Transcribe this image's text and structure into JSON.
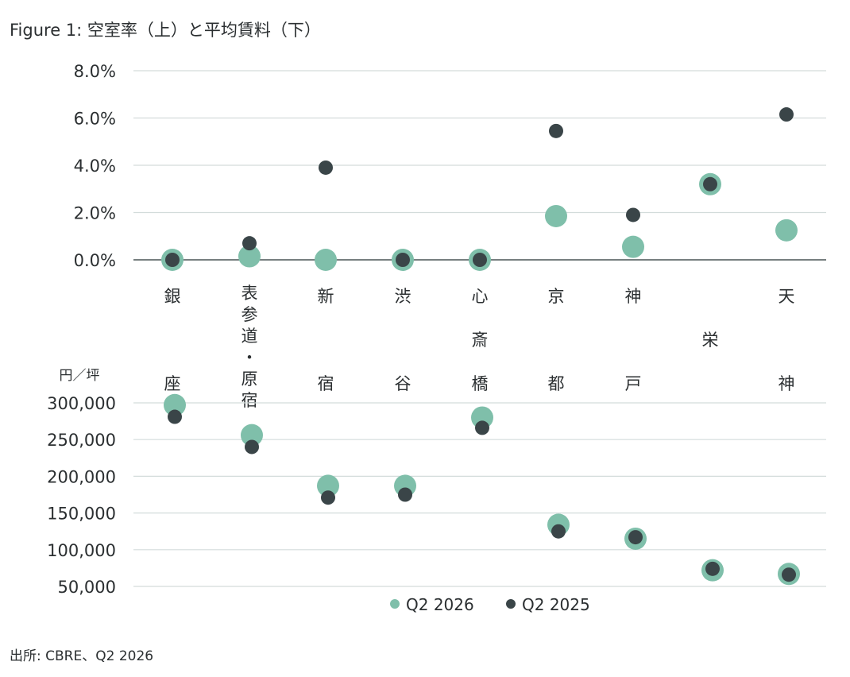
{
  "figure": {
    "title": "Figure 1: 空室率（上）と平均賃料（下）",
    "source": "出所: CBRE、Q2 2026"
  },
  "colors": {
    "q2_2026": "#7fbfaa",
    "q2_2025": "#3a4548",
    "grid": "#d3dcdb",
    "baseline": "#4a5557"
  },
  "chart_data": [
    {
      "type": "scatter",
      "title": "",
      "ylabel": "",
      "ylim": [
        0,
        8
      ],
      "y_ticks": [
        "0.0%",
        "2.0%",
        "4.0%",
        "6.0%",
        "8.0%"
      ],
      "y_tick_values": [
        0,
        2,
        4,
        6,
        8
      ],
      "grid": true,
      "categories": [
        "銀座",
        "表参道・原宿",
        "新宿",
        "渋谷",
        "心斎橋",
        "京都",
        "神戸",
        "栄",
        "天神"
      ],
      "category_label_lines": [
        [
          "銀",
          "",
          "座"
        ],
        [
          "表参道・原宿"
        ],
        [
          "新",
          "",
          "宿"
        ],
        [
          "渋",
          "",
          "谷"
        ],
        [
          "心",
          "斎",
          "橋"
        ],
        [
          "京",
          "",
          "都"
        ],
        [
          "神",
          "",
          "戸"
        ],
        [
          "",
          "栄",
          ""
        ],
        [
          "天",
          "",
          "神"
        ]
      ],
      "series": [
        {
          "name": "Q2 2026",
          "values": [
            0.0,
            0.15,
            0.0,
            0.0,
            0.0,
            1.85,
            0.55,
            3.2,
            1.25
          ]
        },
        {
          "name": "Q2 2025",
          "values": [
            0.0,
            0.7,
            3.9,
            0.0,
            0.0,
            5.45,
            1.9,
            3.2,
            6.15
          ]
        }
      ]
    },
    {
      "type": "scatter",
      "title": "",
      "unit_label": "円／坪",
      "ylim": [
        50000,
        300000
      ],
      "y_ticks": [
        "50,000",
        "100,000",
        "150,000",
        "200,000",
        "250,000",
        "300,000"
      ],
      "y_tick_values": [
        50000,
        100000,
        150000,
        200000,
        250000,
        300000
      ],
      "grid": true,
      "categories": [
        "銀座",
        "表参道・原宿",
        "新宿",
        "渋谷",
        "心斎橋",
        "京都",
        "神戸",
        "栄",
        "天神"
      ],
      "series": [
        {
          "name": "Q2 2026",
          "values": [
            297000,
            256000,
            187000,
            187000,
            280000,
            134000,
            115000,
            72000,
            67000
          ]
        },
        {
          "name": "Q2 2025",
          "values": [
            281000,
            240000,
            171000,
            175000,
            266000,
            125000,
            117000,
            74000,
            66000
          ]
        }
      ],
      "legend": {
        "placement": "bottom-center",
        "entries": [
          "Q2 2026",
          "Q2 2025"
        ]
      }
    }
  ]
}
